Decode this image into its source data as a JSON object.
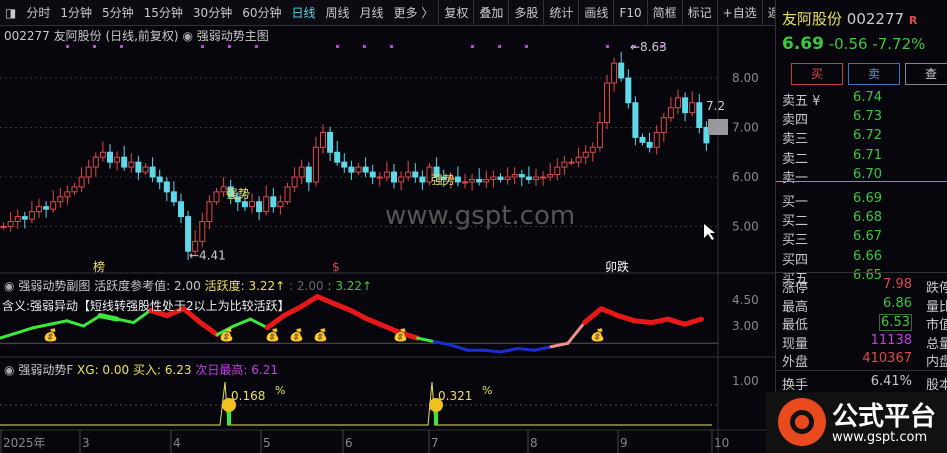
{
  "toolbar": {
    "items": [
      "分时",
      "1分钟",
      "5分钟",
      "15分钟",
      "30分钟",
      "60分钟",
      "日线",
      "周线",
      "月线",
      "更多 〉",
      "复权",
      "叠加",
      "多股",
      "统计",
      "画线",
      "F10",
      "简框",
      "标记",
      "+自选",
      "返回"
    ],
    "active": "日线"
  },
  "main_chart": {
    "title": "002277 友阿股份 (日线,前复权)",
    "indicator": "强弱动势主图",
    "high_label": "8.63",
    "low_label": "4.41",
    "last_label": "7.2",
    "axis": [
      "8.00",
      "7.00",
      "6.00",
      "5.00"
    ],
    "markers": [
      "强势",
      "强势",
      "榜",
      "$",
      "卯跌"
    ],
    "watermark": "www.gspt.com"
  },
  "chart_data": {
    "type": "candlestick",
    "ylim": [
      4.3,
      8.7
    ],
    "closes": [
      5.0,
      5.1,
      5.2,
      5.15,
      5.3,
      5.4,
      5.35,
      5.5,
      5.6,
      5.7,
      5.8,
      6.0,
      6.2,
      6.4,
      6.5,
      6.3,
      6.4,
      6.2,
      6.3,
      6.1,
      6.2,
      6.0,
      5.9,
      5.7,
      5.5,
      5.2,
      4.5,
      4.7,
      5.1,
      5.5,
      5.7,
      5.8,
      5.6,
      5.5,
      5.4,
      5.5,
      5.3,
      5.6,
      5.4,
      5.5,
      5.8,
      6.0,
      6.2,
      5.9,
      6.6,
      6.9,
      6.5,
      6.3,
      6.2,
      6.1,
      6.2,
      6.1,
      6.0,
      6.0,
      6.1,
      5.9,
      6.0,
      6.1,
      6.0,
      5.9,
      6.2,
      6.0,
      5.95,
      6.0,
      5.9,
      5.9,
      5.95,
      5.9,
      5.95,
      6.0,
      5.95,
      6.0,
      6.05,
      6.0,
      5.95,
      6.0,
      6.0,
      6.05,
      6.2,
      6.3,
      6.3,
      6.4,
      6.5,
      6.6,
      7.1,
      7.9,
      8.3,
      8.0,
      7.5,
      6.8,
      6.7,
      6.6,
      6.9,
      7.2,
      7.4,
      7.6,
      7.3,
      7.5,
      7.0,
      6.69
    ],
    "x_ticks": [
      "2025年",
      "3",
      "4",
      "5",
      "6",
      "7",
      "8",
      "9",
      "10"
    ]
  },
  "sub1": {
    "title": "强弱动势副图",
    "ref_label": "活跃度参考值:",
    "ref_value": "2.00",
    "act_label": "活跃度:",
    "act_value": "3.22↑",
    "v1": ": 2.00",
    "v2": ": 3.22↑",
    "note": "含义:强弱异动【短线转强股性处于2以上为比较活跃】",
    "axis": [
      "4.50",
      "3.00"
    ],
    "values": [
      2.3,
      2.6,
      2.9,
      3.1,
      3.3,
      3.0,
      3.6,
      3.4,
      3.2,
      3.9,
      3.6,
      4.0,
      3.2,
      2.5,
      3.0,
      3.4,
      2.9,
      3.6,
      4.1,
      4.7,
      4.3,
      3.9,
      3.4,
      3.0,
      2.6,
      2.3,
      2.1,
      1.9,
      1.6,
      1.6,
      1.5,
      1.7,
      1.6,
      1.8,
      2.0,
      3.2,
      4.0,
      3.6,
      3.3,
      3.2,
      3.4,
      3.1,
      3.4
    ],
    "colors": [
      "g",
      "g",
      "g",
      "g",
      "g",
      "g",
      "g",
      "g",
      "g",
      "r",
      "r",
      "r",
      "r",
      "g",
      "g",
      "g",
      "r",
      "r",
      "r",
      "r",
      "r",
      "r",
      "r",
      "r",
      "r",
      "g",
      "b",
      "b",
      "b",
      "b",
      "b",
      "b",
      "b",
      "p",
      "p",
      "r",
      "r",
      "r",
      "r",
      "r",
      "r",
      "r",
      "g"
    ]
  },
  "sub2": {
    "title": "强弱动势F",
    "xg": "XG: 0.00",
    "buy": "买入: 6.23",
    "next_high": "次日最高: 6.21",
    "pct1": "0.168",
    "pct2": "0.321",
    "pct_sign": "%",
    "axis": "1.00"
  },
  "quote": {
    "name": "友阿股份",
    "code": "002277",
    "flag": "R",
    "price": "6.69",
    "change": "-0.56",
    "pct": "-7.72%",
    "buy": "买",
    "sell": "卖",
    "query": "查",
    "asks": [
      {
        "l": "卖五 ¥",
        "v": "6.74"
      },
      {
        "l": "卖四",
        "v": "6.73"
      },
      {
        "l": "卖三",
        "v": "6.72"
      },
      {
        "l": "卖二",
        "v": "6.71"
      },
      {
        "l": "卖一",
        "v": "6.70"
      }
    ],
    "bids": [
      {
        "l": "买一",
        "v": "6.69"
      },
      {
        "l": "买二",
        "v": "6.68"
      },
      {
        "l": "买三",
        "v": "6.67"
      },
      {
        "l": "买四",
        "v": "6.66"
      },
      {
        "l": "买五",
        "v": "6.65"
      }
    ],
    "stats": [
      {
        "l": "涨停",
        "v": "7.98",
        "r": "跌停",
        "c": "#e04848"
      },
      {
        "l": "最高",
        "v": "6.86",
        "r": "量比",
        "c": "#3cc83c"
      },
      {
        "l": "最低",
        "v": "6.53",
        "r": "市值",
        "c": "#3cc83c"
      },
      {
        "l": "现量",
        "v": "11138",
        "r": "总量",
        "c": "#c040e0"
      },
      {
        "l": "外盘",
        "v": "410367",
        "r": "内盘",
        "c": "#e04848"
      },
      {
        "l": "换手",
        "v": "6.41%",
        "r": "股本",
        "c": "#c8c8c8"
      }
    ]
  },
  "logo": {
    "text": "公式平台",
    "url": "www.gspt.com"
  }
}
